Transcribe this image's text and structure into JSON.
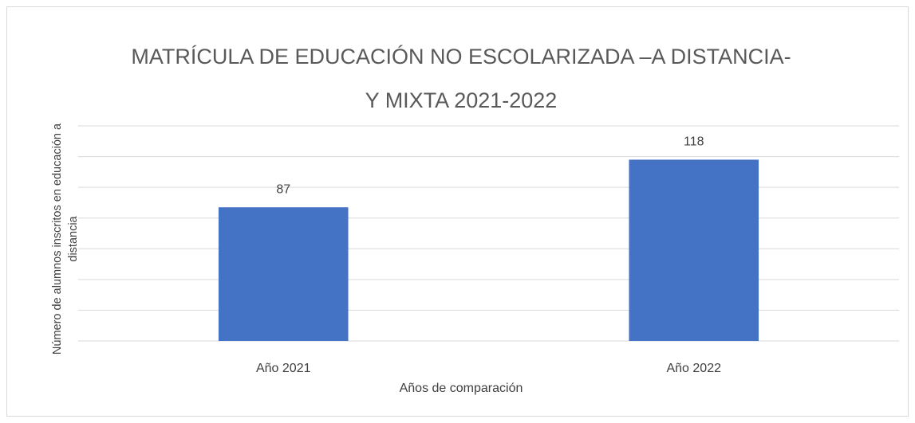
{
  "chart_data": {
    "type": "bar",
    "title": "MATRÍCULA DE EDUCACIÓN NO ESCOLARIZADA –A DISTANCIA- Y MIXTA 2021-2022",
    "x_label": "Años de comparación",
    "y_label": "Número de  alumnos inscritos en educación a distancia",
    "categories": [
      "Año 2021",
      "Año 2022"
    ],
    "values": [
      87,
      118
    ],
    "color": "#4472c4",
    "ylim": [
      0,
      140
    ],
    "yticks": [
      0,
      20,
      40,
      60,
      80,
      100,
      120,
      140
    ],
    "grid": true
  }
}
